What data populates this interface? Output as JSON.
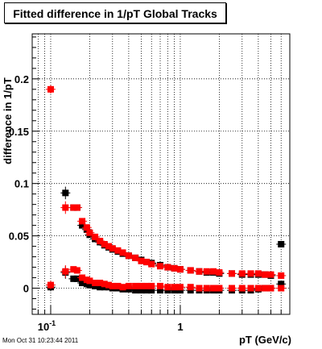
{
  "title": "Fitted difference in 1/pT  Global Tracks",
  "timestamp": "Mon Oct 31 10:23:44 2011",
  "chart_data": {
    "type": "scatter",
    "title": "Fitted difference in 1/pT  Global Tracks",
    "xlabel": "pT (GeV/c)",
    "ylabel": "difference in 1/pT",
    "x_scale": "log",
    "xlim": [
      0.072,
      7.0
    ],
    "ylim": [
      -0.025,
      0.243
    ],
    "grid": true,
    "x_ticks": [
      {
        "value": 0.1,
        "label": "10",
        "exp": "-1"
      },
      {
        "value": 1,
        "label": "1",
        "exp": ""
      }
    ],
    "y_ticks": [
      {
        "value": 0,
        "label": "0"
      },
      {
        "value": 0.05,
        "label": "0.05"
      },
      {
        "value": 0.1,
        "label": "0.1"
      },
      {
        "value": 0.15,
        "label": "0.15"
      },
      {
        "value": 0.2,
        "label": "0.2"
      }
    ],
    "series": [
      {
        "color": "#000000",
        "points": [
          [
            0.1,
            0.001
          ],
          [
            0.13,
            0.091
          ],
          [
            0.13,
            0.015
          ],
          [
            0.15,
            0.077
          ],
          [
            0.15,
            0.009
          ],
          [
            0.16,
            0.077
          ],
          [
            0.16,
            0.009
          ],
          [
            0.175,
            0.06
          ],
          [
            0.175,
            0.005
          ],
          [
            0.19,
            0.056
          ],
          [
            0.19,
            0.004
          ],
          [
            0.2,
            0.051
          ],
          [
            0.2,
            0.003
          ],
          [
            0.22,
            0.047
          ],
          [
            0.22,
            0.002
          ],
          [
            0.24,
            0.044
          ],
          [
            0.24,
            0.001
          ],
          [
            0.26,
            0.041
          ],
          [
            0.26,
            0.001
          ],
          [
            0.28,
            0.039
          ],
          [
            0.28,
            0.001
          ],
          [
            0.3,
            0.037
          ],
          [
            0.3,
            0.0
          ],
          [
            0.33,
            0.035
          ],
          [
            0.33,
            0.0
          ],
          [
            0.36,
            0.033
          ],
          [
            0.36,
            -0.001
          ],
          [
            0.4,
            0.031
          ],
          [
            0.4,
            -0.001
          ],
          [
            0.45,
            0.029
          ],
          [
            0.45,
            -0.002
          ],
          [
            0.5,
            0.027
          ],
          [
            0.5,
            -0.002
          ],
          [
            0.55,
            0.025
          ],
          [
            0.55,
            -0.002
          ],
          [
            0.6,
            0.024
          ],
          [
            0.6,
            -0.002
          ],
          [
            0.7,
            0.022
          ],
          [
            0.7,
            -0.002
          ],
          [
            0.8,
            0.02
          ],
          [
            0.8,
            -0.002
          ],
          [
            0.9,
            0.019
          ],
          [
            0.9,
            -0.002
          ],
          [
            1.0,
            0.018
          ],
          [
            1.0,
            -0.002
          ],
          [
            1.2,
            0.017
          ],
          [
            1.2,
            -0.002
          ],
          [
            1.4,
            0.016
          ],
          [
            1.4,
            -0.002
          ],
          [
            1.6,
            0.015
          ],
          [
            1.6,
            -0.002
          ],
          [
            1.8,
            0.015
          ],
          [
            1.8,
            -0.002
          ],
          [
            2.0,
            0.014
          ],
          [
            2.0,
            -0.002
          ],
          [
            2.5,
            0.014
          ],
          [
            2.5,
            -0.002
          ],
          [
            3.0,
            0.013
          ],
          [
            3.0,
            -0.002
          ],
          [
            3.5,
            0.013
          ],
          [
            3.5,
            -0.002
          ],
          [
            4.0,
            0.013
          ],
          [
            4.0,
            -0.001
          ],
          [
            4.5,
            0.013
          ],
          [
            4.5,
            0.0
          ],
          [
            5.0,
            0.012
          ],
          [
            5.0,
            0.0
          ],
          [
            6.0,
            0.042
          ],
          [
            6.0,
            0.004
          ]
        ]
      },
      {
        "color": "#ff0000",
        "points": [
          [
            0.1,
            0.19
          ],
          [
            0.1,
            0.003
          ],
          [
            0.13,
            0.077
          ],
          [
            0.13,
            0.016
          ],
          [
            0.15,
            0.077
          ],
          [
            0.15,
            0.018
          ],
          [
            0.16,
            0.077
          ],
          [
            0.16,
            0.017
          ],
          [
            0.175,
            0.064
          ],
          [
            0.175,
            0.01
          ],
          [
            0.19,
            0.058
          ],
          [
            0.19,
            0.008
          ],
          [
            0.2,
            0.053
          ],
          [
            0.2,
            0.007
          ],
          [
            0.22,
            0.049
          ],
          [
            0.22,
            0.005
          ],
          [
            0.24,
            0.045
          ],
          [
            0.24,
            0.005
          ],
          [
            0.26,
            0.042
          ],
          [
            0.26,
            0.004
          ],
          [
            0.28,
            0.04
          ],
          [
            0.28,
            0.003
          ],
          [
            0.3,
            0.038
          ],
          [
            0.3,
            0.002
          ],
          [
            0.33,
            0.036
          ],
          [
            0.33,
            0.002
          ],
          [
            0.36,
            0.034
          ],
          [
            0.36,
            0.001
          ],
          [
            0.4,
            0.031
          ],
          [
            0.4,
            0.002
          ],
          [
            0.45,
            0.029
          ],
          [
            0.45,
            0.002
          ],
          [
            0.5,
            0.026
          ],
          [
            0.5,
            0.002
          ],
          [
            0.55,
            0.025
          ],
          [
            0.55,
            0.002
          ],
          [
            0.6,
            0.023
          ],
          [
            0.6,
            0.002
          ],
          [
            0.7,
            0.021
          ],
          [
            0.7,
            0.002
          ],
          [
            0.8,
            0.02
          ],
          [
            0.8,
            0.001
          ],
          [
            0.9,
            0.019
          ],
          [
            0.9,
            0.001
          ],
          [
            1.0,
            0.018
          ],
          [
            1.0,
            0.001
          ],
          [
            1.2,
            0.017
          ],
          [
            1.2,
            0.001
          ],
          [
            1.4,
            0.016
          ],
          [
            1.4,
            0.0
          ],
          [
            1.6,
            0.016
          ],
          [
            1.6,
            0.0
          ],
          [
            1.8,
            0.016
          ],
          [
            1.8,
            0.0
          ],
          [
            2.0,
            0.015
          ],
          [
            2.0,
            0.0
          ],
          [
            2.5,
            0.014
          ],
          [
            2.5,
            0.0
          ],
          [
            3.0,
            0.014
          ],
          [
            3.0,
            0.0
          ],
          [
            3.5,
            0.014
          ],
          [
            3.5,
            0.0
          ],
          [
            4.0,
            0.014
          ],
          [
            4.0,
            0.0
          ],
          [
            4.5,
            0.013
          ],
          [
            4.5,
            0.0
          ],
          [
            5.0,
            0.013
          ],
          [
            5.0,
            0.0
          ],
          [
            6.0,
            0.012
          ],
          [
            6.0,
            0.0
          ]
        ]
      }
    ],
    "error_bars": {
      "0.1": 0.004,
      "0.13": 0.006,
      "6.0": 0.012
    }
  }
}
